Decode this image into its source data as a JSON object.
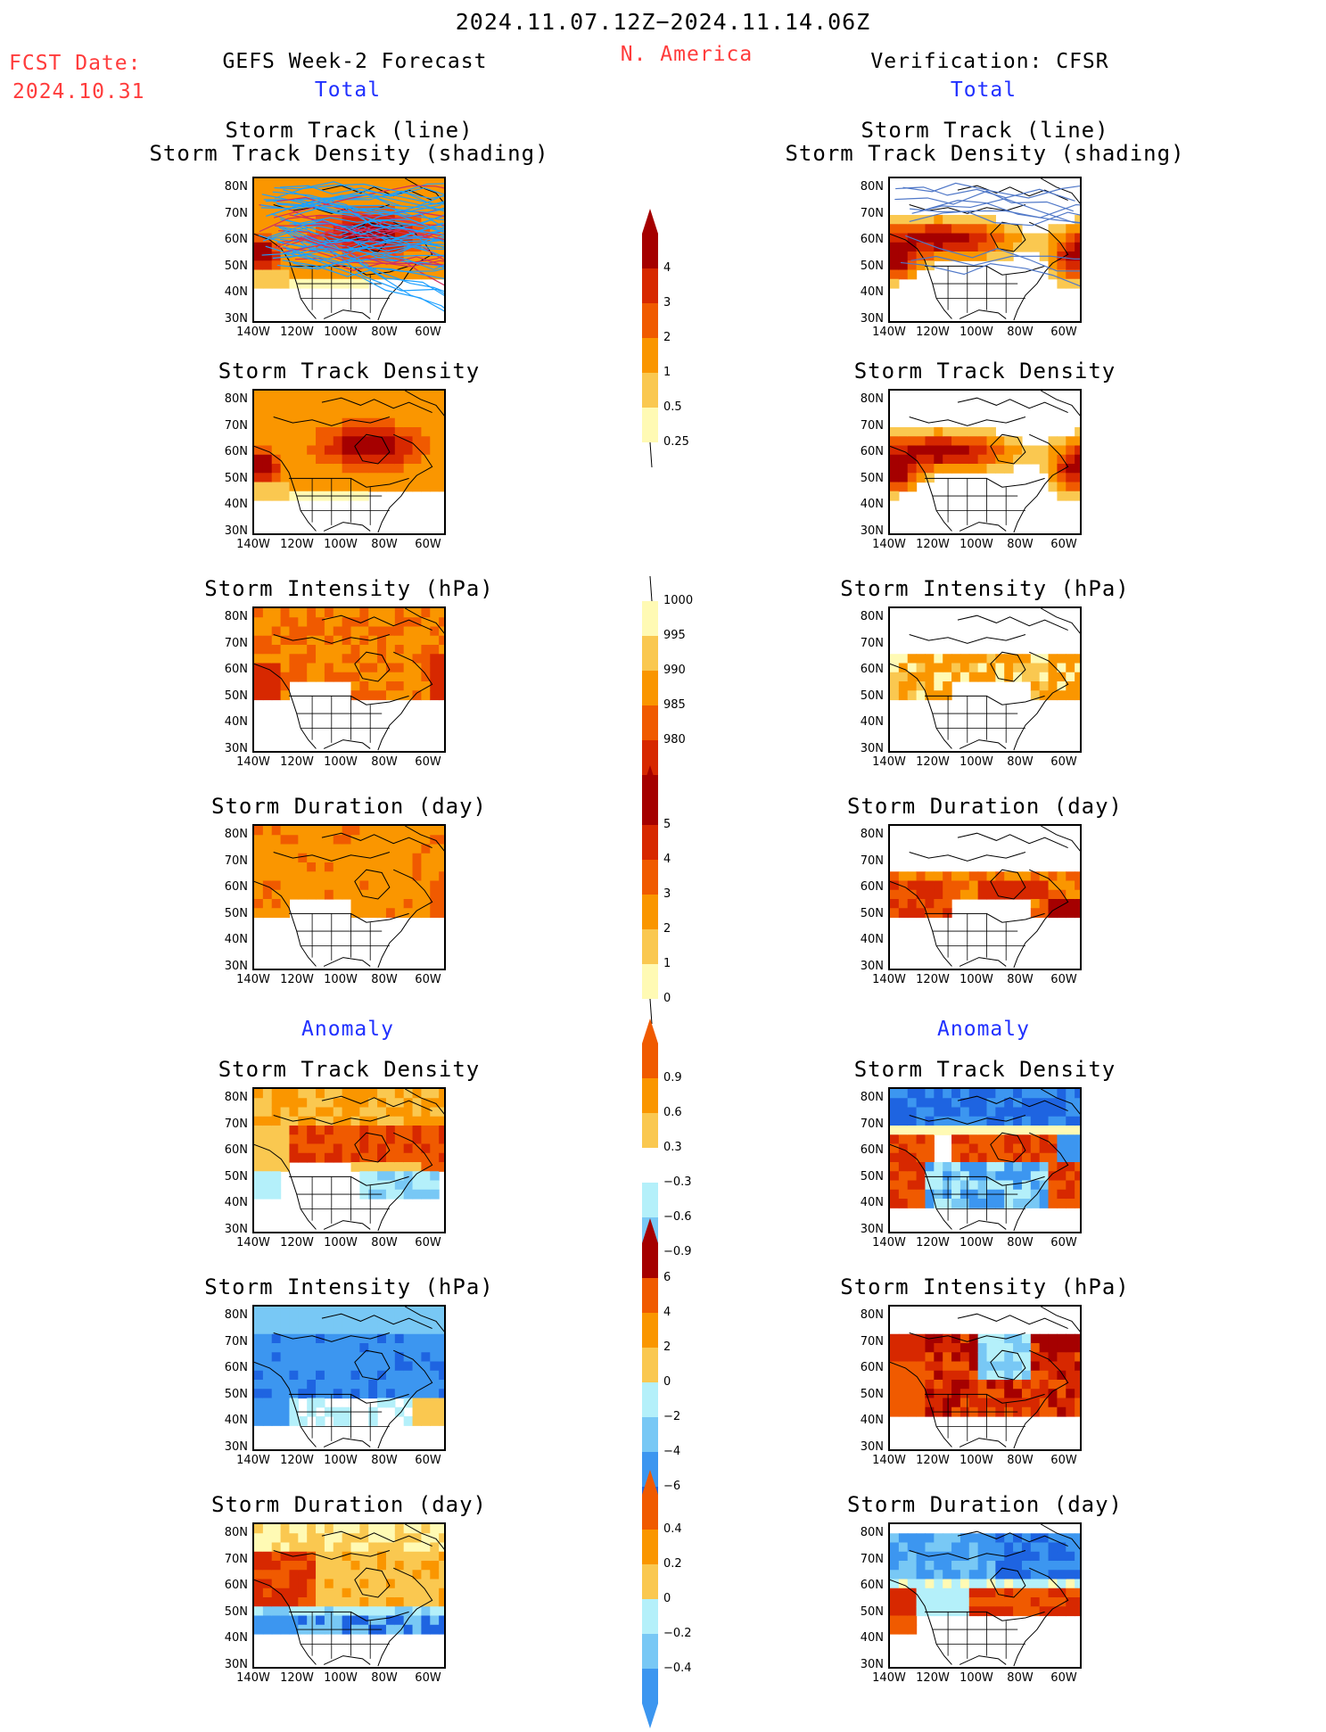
{
  "header": {
    "period": "2024.11.07.12Z−2024.11.14.06Z",
    "region": "N. America",
    "fcst_label": "FCST Date:",
    "fcst_date": "2024.10.31",
    "left_title": "GEFS Week-2 Forecast",
    "right_title": "Verification: CFSR",
    "total_left": "Total",
    "total_right": "Total",
    "anomaly_left": "Anomaly",
    "anomaly_right": "Anomaly"
  },
  "panel_titles": {
    "track_line": "Storm Track (line)",
    "track_shading": "Storm Track Density (shading)",
    "density": "Storm Track Density",
    "intensity": "Storm Intensity (hPa)",
    "duration": "Storm Duration (day)"
  },
  "axis": {
    "lat_labels": [
      "80N",
      "70N",
      "60N",
      "50N",
      "40N",
      "30N"
    ],
    "lon_labels": [
      "140W",
      "120W",
      "100W",
      "80W",
      "60W"
    ]
  },
  "colors": {
    "darkred": "#a50000",
    "red": "#d72800",
    "orangered": "#f05a00",
    "orange": "#fa9600",
    "lightorange": "#fac850",
    "paleyellow": "#fffab4",
    "lightcyan": "#b4f0fa",
    "skyblue": "#78c8f5",
    "blue": "#3c96f0",
    "darkblue": "#1e64e1",
    "track_forecast": "#1ea0ff",
    "track_forecast_alt": "#d03060",
    "track_obs": "#5078c8"
  },
  "colorbars": [
    {
      "id": "density_total",
      "labels": [
        "4",
        "3",
        "2",
        "1",
        "0.5",
        "0.25"
      ],
      "colors": [
        "#a50000",
        "#d72800",
        "#f05a00",
        "#fa9600",
        "#fac850",
        "#fffab4"
      ],
      "top_arrow": true,
      "bottom_arrow": false
    },
    {
      "id": "intensity_total",
      "labels": [
        "1000",
        "995",
        "990",
        "985",
        "980"
      ],
      "colors": [
        "#fffab4",
        "#fac850",
        "#fa9600",
        "#f05a00",
        "#d72800",
        "#a50000"
      ],
      "top_arrow": false,
      "bottom_arrow": true
    },
    {
      "id": "duration_total",
      "labels": [
        "5",
        "4",
        "3",
        "2",
        "1",
        "0"
      ],
      "colors": [
        "#a50000",
        "#d72800",
        "#f05a00",
        "#fa9600",
        "#fac850",
        "#fffab4"
      ],
      "top_arrow": true,
      "bottom_arrow": false
    },
    {
      "id": "density_anom",
      "labels": [
        "0.9",
        "0.6",
        "0.3",
        "−0.3",
        "−0.6",
        "−0.9"
      ],
      "colors": [
        "#f05a00",
        "#fa9600",
        "#fac850",
        "#ffffff",
        "#b4f0fa",
        "#78c8f5",
        "#3c96f0"
      ],
      "top_arrow": true,
      "bottom_arrow": true
    },
    {
      "id": "intensity_anom",
      "labels": [
        "6",
        "4",
        "2",
        "0",
        "−2",
        "−4",
        "−6"
      ],
      "colors": [
        "#a50000",
        "#f05a00",
        "#fa9600",
        "#fac850",
        "#b4f0fa",
        "#78c8f5",
        "#3c96f0",
        "#1e64e1"
      ],
      "top_arrow": true,
      "bottom_arrow": true
    },
    {
      "id": "duration_anom",
      "labels": [
        "0.4",
        "0.2",
        "0",
        "−0.2",
        "−0.4"
      ],
      "colors": [
        "#f05a00",
        "#fa9600",
        "#fac850",
        "#b4f0fa",
        "#78c8f5",
        "#3c96f0"
      ],
      "top_arrow": true,
      "bottom_arrow": true
    }
  ]
}
